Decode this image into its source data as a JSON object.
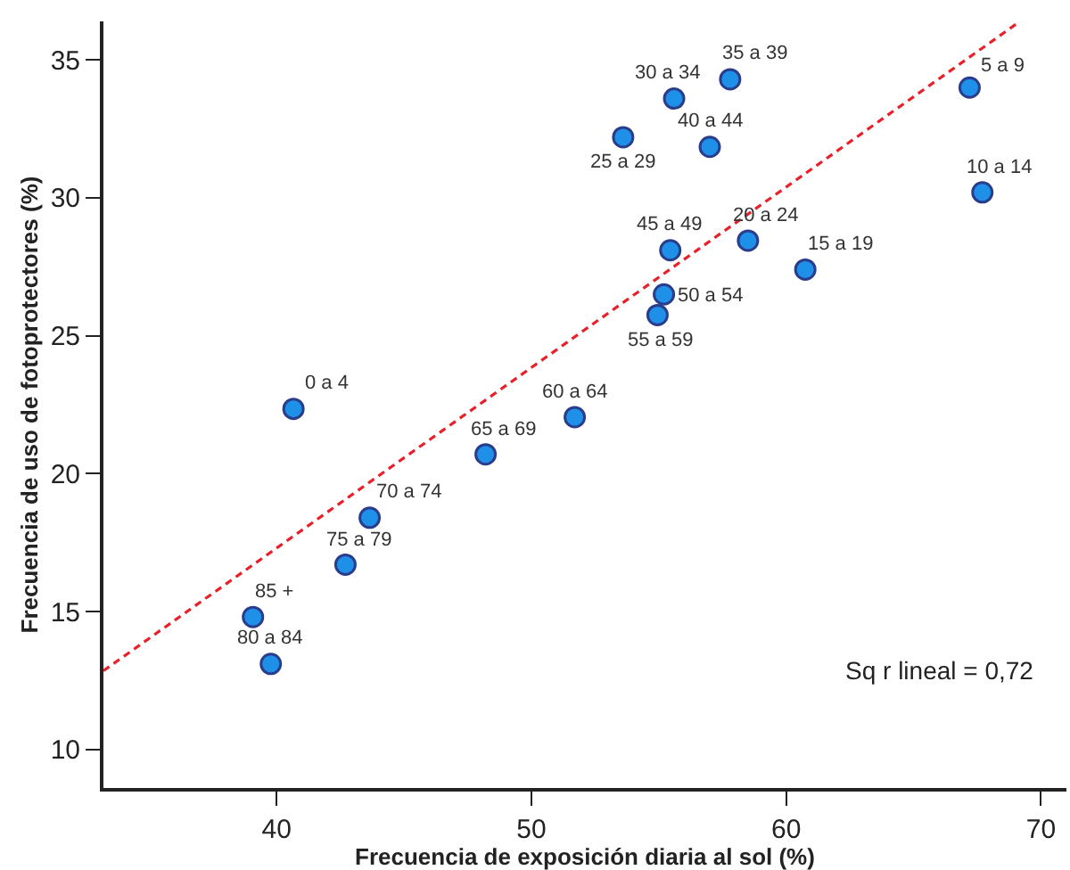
{
  "chart_data": {
    "type": "scatter",
    "xlabel": "Frecuencia de exposición diaria al sol (%)",
    "ylabel": "Frecuencia de uso de fotoprotectores (%)",
    "xlim": [
      33.2,
      71
    ],
    "xticks": [
      40,
      50,
      60,
      70
    ],
    "ylim": [
      8.6,
      36.4
    ],
    "yticks": [
      10,
      15,
      20,
      25,
      30,
      35
    ],
    "series": [
      {
        "color": "#1e90e8",
        "marker": "circle",
        "x": [
          40.66,
          67.2,
          67.7,
          60.75,
          58.5,
          53.6,
          55.6,
          57.8,
          57.0,
          55.45,
          55.2,
          54.95,
          51.7,
          48.2,
          43.65,
          42.7,
          39.77,
          39.07
        ],
        "values": [
          22.35,
          34.0,
          30.2,
          27.4,
          28.45,
          32.2,
          33.6,
          34.3,
          31.85,
          28.1,
          26.5,
          25.75,
          22.05,
          20.7,
          18.4,
          16.7,
          13.1,
          14.8
        ]
      },
      {
        "type": "line",
        "color": "#e8202a",
        "line_style": "dashed",
        "x": [
          33.2,
          69.1
        ],
        "values": [
          12.85,
          36.35
        ]
      }
    ],
    "annotations": [
      {
        "text": "0 a 4",
        "x": 40.66,
        "y": 22.35
      },
      {
        "text": "5 a 9",
        "x": 67.2,
        "y": 34.0
      },
      {
        "text": "10 a 14",
        "x": 67.7,
        "y": 30.2
      },
      {
        "text": "15 a 19",
        "x": 60.75,
        "y": 27.4
      },
      {
        "text": "20 a 24",
        "x": 58.5,
        "y": 28.45
      },
      {
        "text": "25 a 29",
        "x": 53.6,
        "y": 32.2
      },
      {
        "text": "30 a 34",
        "x": 55.6,
        "y": 33.6
      },
      {
        "text": "35 a 39",
        "x": 57.8,
        "y": 34.3
      },
      {
        "text": "40 a 44",
        "x": 57.0,
        "y": 31.85
      },
      {
        "text": "45 a 49",
        "x": 55.45,
        "y": 28.1
      },
      {
        "text": "50 a 54",
        "x": 55.2,
        "y": 26.5
      },
      {
        "text": "55 a 59",
        "x": 54.95,
        "y": 25.75
      },
      {
        "text": "60 a 64",
        "x": 51.7,
        "y": 22.05
      },
      {
        "text": "65 a 69",
        "x": 48.2,
        "y": 20.7
      },
      {
        "text": "70 a 74",
        "x": 43.65,
        "y": 18.4
      },
      {
        "text": "75 a 79",
        "x": 42.7,
        "y": 16.7
      },
      {
        "text": "80 a 84",
        "x": 39.77,
        "y": 13.1
      },
      {
        "text": "85 +",
        "x": 39.07,
        "y": 14.8
      },
      "Sq r lineal = 0,72"
    ]
  }
}
